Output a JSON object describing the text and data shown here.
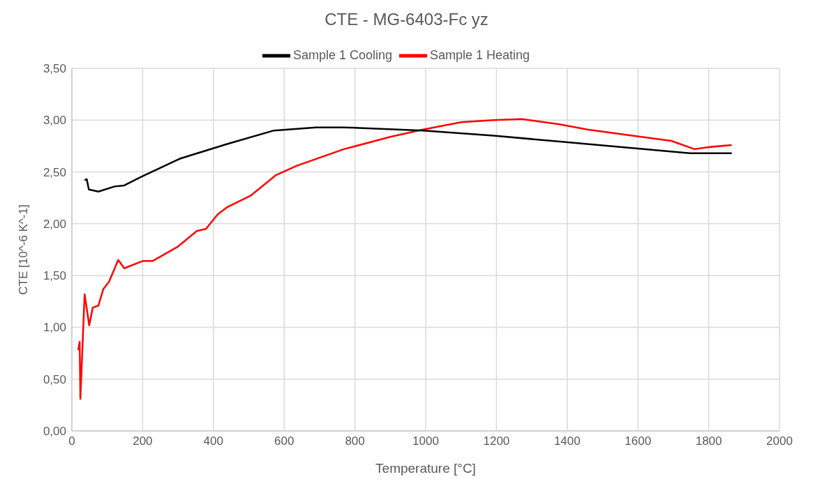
{
  "chart_data": {
    "type": "line",
    "title": "CTE - MG-6403-Fc yz",
    "xlabel": "Temperature [°C]",
    "ylabel": "CTE [10^-6 K^-1]",
    "xlim": [
      0,
      2000
    ],
    "xticks": [
      0,
      200,
      400,
      600,
      800,
      1000,
      1200,
      1400,
      1600,
      1800,
      2000
    ],
    "ylim": [
      0,
      3.5
    ],
    "yticks": [
      {
        "value": 0,
        "label": "0,00"
      },
      {
        "value": 0.5,
        "label": "0,50"
      },
      {
        "value": 1,
        "label": "1,00"
      },
      {
        "value": 1.5,
        "label": "1,50"
      },
      {
        "value": 2,
        "label": "2,00"
      },
      {
        "value": 2.5,
        "label": "2,50"
      },
      {
        "value": 3,
        "label": "3,00"
      },
      {
        "value": 3.5,
        "label": "3,50"
      }
    ],
    "grid": true,
    "legend": "top",
    "marker": "none",
    "line_style": "solid",
    "series": [
      {
        "name": "Sample 1 Heating",
        "color": "#ff0000",
        "x": [
          18,
          22,
          24,
          36,
          49,
          59,
          75,
          89,
          105,
          131,
          148,
          200,
          228,
          300,
          353,
          379,
          412,
          439,
          505,
          577,
          636,
          769,
          902,
          993,
          1100,
          1191,
          1271,
          1378,
          1457,
          1562,
          1694,
          1760,
          1800,
          1865
        ],
        "values": [
          0.78,
          0.86,
          0.31,
          1.32,
          1.02,
          1.19,
          1.21,
          1.37,
          1.44,
          1.65,
          1.57,
          1.64,
          1.64,
          1.78,
          1.93,
          1.95,
          2.09,
          2.16,
          2.27,
          2.47,
          2.56,
          2.72,
          2.84,
          2.91,
          2.98,
          3.0,
          3.01,
          2.96,
          2.91,
          2.86,
          2.8,
          2.72,
          2.74,
          2.76
        ]
      },
      {
        "name": "Sample 1 Cooling",
        "color": "#000000",
        "x": [
          36,
          42,
          48,
          75,
          121,
          148,
          200,
          307,
          439,
          571,
          690,
          769,
          993,
          1191,
          1390,
          1588,
          1747,
          1865
        ],
        "values": [
          2.42,
          2.43,
          2.33,
          2.31,
          2.36,
          2.37,
          2.46,
          2.63,
          2.77,
          2.9,
          2.93,
          2.93,
          2.9,
          2.85,
          2.79,
          2.73,
          2.68,
          2.68
        ]
      }
    ]
  }
}
